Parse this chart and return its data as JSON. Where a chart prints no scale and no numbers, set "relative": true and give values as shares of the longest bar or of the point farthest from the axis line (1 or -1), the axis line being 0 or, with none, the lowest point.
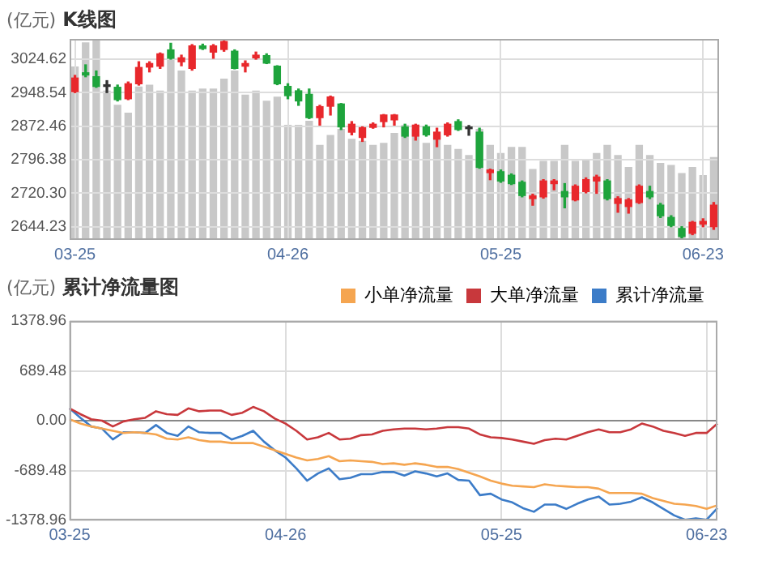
{
  "chart_data": [
    {
      "type": "candlestick",
      "title": "K线图",
      "ylabel": "(亿元)",
      "categories": [
        "03-25",
        null,
        null,
        null,
        null,
        null,
        null,
        null,
        null,
        null,
        null,
        null,
        null,
        null,
        null,
        null,
        null,
        null,
        null,
        null,
        "04-26",
        null,
        null,
        null,
        null,
        null,
        null,
        null,
        null,
        null,
        null,
        null,
        null,
        null,
        null,
        null,
        null,
        null,
        null,
        null,
        "05-25",
        null,
        null,
        null,
        null,
        null,
        null,
        null,
        null,
        null,
        null,
        null,
        null,
        null,
        null,
        null,
        null,
        null,
        null,
        "06-23",
        null
      ],
      "ohlc": [
        [
          2951,
          2988,
          2949,
          2982
        ],
        [
          2994,
          3012,
          2985,
          2989
        ],
        [
          2985,
          2998,
          2961,
          2963
        ],
        [
          2963,
          2976,
          2949,
          2963
        ],
        [
          2961,
          2966,
          2930,
          2933
        ],
        [
          2935,
          2973,
          2933,
          2969
        ],
        [
          2969,
          3019,
          2966,
          3006
        ],
        [
          3007,
          3019,
          2996,
          3015
        ],
        [
          3009,
          3039,
          3004,
          3037
        ],
        [
          3046,
          3061,
          3025,
          3027
        ],
        [
          3019,
          3034,
          3010,
          3028
        ],
        [
          3004,
          3058,
          3000,
          3055
        ],
        [
          3055,
          3059,
          3047,
          3049
        ],
        [
          3041,
          3058,
          3027,
          3055
        ],
        [
          3047,
          3069,
          3043,
          3065
        ],
        [
          3043,
          3046,
          3003,
          3004
        ],
        [
          3009,
          3021,
          2996,
          3015
        ],
        [
          3028,
          3041,
          3025,
          3034
        ],
        [
          3033,
          3037,
          3015,
          3016
        ],
        [
          3009,
          3010,
          2967,
          2969
        ],
        [
          2963,
          2969,
          2935,
          2942
        ],
        [
          2953,
          2957,
          2920,
          2930
        ],
        [
          2945,
          2957,
          2890,
          2892
        ],
        [
          2892,
          2920,
          2875,
          2917
        ],
        [
          2918,
          2941,
          2898,
          2939
        ],
        [
          2923,
          2924,
          2865,
          2871
        ],
        [
          2859,
          2883,
          2853,
          2877
        ],
        [
          2847,
          2871,
          2838,
          2869
        ],
        [
          2870,
          2880,
          2868,
          2877
        ],
        [
          2883,
          2899,
          2871,
          2898
        ],
        [
          2887,
          2899,
          2875,
          2898
        ],
        [
          2871,
          2877,
          2847,
          2850
        ],
        [
          2850,
          2877,
          2841,
          2875
        ],
        [
          2871,
          2875,
          2850,
          2853
        ],
        [
          2843,
          2868,
          2826,
          2859
        ],
        [
          2853,
          2880,
          2850,
          2877
        ],
        [
          2883,
          2887,
          2863,
          2865
        ],
        [
          2867,
          2874,
          2852,
          2867
        ],
        [
          2859,
          2868,
          2777,
          2779
        ],
        [
          2767,
          2775,
          2751,
          2773
        ],
        [
          2769,
          2773,
          2745,
          2748
        ],
        [
          2761,
          2764,
          2740,
          2742
        ],
        [
          2745,
          2748,
          2712,
          2715
        ],
        [
          2708,
          2718,
          2693,
          2714
        ],
        [
          2712,
          2751,
          2709,
          2748
        ],
        [
          2742,
          2751,
          2728,
          2748
        ],
        [
          2724,
          2742,
          2687,
          2712
        ],
        [
          2705,
          2739,
          2703,
          2736
        ],
        [
          2724,
          2755,
          2721,
          2751
        ],
        [
          2748,
          2761,
          2720,
          2757
        ],
        [
          2748,
          2751,
          2705,
          2708
        ],
        [
          2697,
          2712,
          2677,
          2708
        ],
        [
          2690,
          2708,
          2675,
          2705
        ],
        [
          2699,
          2739,
          2697,
          2736
        ],
        [
          2724,
          2736,
          2708,
          2712
        ],
        [
          2693,
          2697,
          2665,
          2669
        ],
        [
          2665,
          2669,
          2644,
          2647
        ],
        [
          2640,
          2644,
          2616,
          2622
        ],
        [
          2629,
          2656,
          2626,
          2654
        ],
        [
          2650,
          2662,
          2644,
          2656
        ],
        [
          2644,
          2699,
          2638,
          2693
        ]
      ],
      "colors": [
        "#e8282c",
        "#1ea43c",
        "#1ea43c",
        "#333333",
        "#1ea43c",
        "#e8282c",
        "#e8282c",
        "#e8282c",
        "#e8282c",
        "#1ea43c",
        "#e8282c",
        "#e8282c",
        "#1ea43c",
        "#e8282c",
        "#e8282c",
        "#1ea43c",
        "#e8282c",
        "#e8282c",
        "#1ea43c",
        "#1ea43c",
        "#1ea43c",
        "#1ea43c",
        "#1ea43c",
        "#e8282c",
        "#e8282c",
        "#1ea43c",
        "#e8282c",
        "#e8282c",
        "#e8282c",
        "#e8282c",
        "#e8282c",
        "#1ea43c",
        "#e8282c",
        "#1ea43c",
        "#e8282c",
        "#e8282c",
        "#1ea43c",
        "#333333",
        "#1ea43c",
        "#e8282c",
        "#1ea43c",
        "#1ea43c",
        "#1ea43c",
        "#e8282c",
        "#e8282c",
        "#e8282c",
        "#1ea43c",
        "#e8282c",
        "#e8282c",
        "#e8282c",
        "#1ea43c",
        "#e8282c",
        "#e8282c",
        "#e8282c",
        "#1ea43c",
        "#1ea43c",
        "#1ea43c",
        "#1ea43c",
        "#e8282c",
        "#e8282c",
        "#e8282c"
      ],
      "ylim": [
        2614,
        3071
      ],
      "yticks": [
        2644.23,
        {
          "value": 2720.3,
          "label": "2720.30"
        },
        2796.38,
        2872.46,
        2948.54,
        3024.62
      ],
      "grid": true
    },
    {
      "type": "bar",
      "relative": true,
      "categories": [
        null,
        null,
        null,
        null,
        null,
        null,
        null,
        null,
        null,
        null,
        null,
        null,
        null,
        null,
        null,
        null,
        null,
        null,
        null,
        null,
        null,
        null,
        null,
        null,
        null,
        null,
        null,
        null,
        null,
        null,
        null,
        null,
        null,
        null,
        null,
        null,
        null,
        null,
        null,
        null,
        null,
        null,
        null,
        null,
        null,
        null,
        null,
        null,
        null,
        null,
        null,
        null,
        null,
        null,
        null,
        null,
        null,
        null,
        null,
        null,
        null
      ],
      "color": "#c8c8c8",
      "values": [
        0.86,
        0.98,
        1,
        0.74,
        0.67,
        0.63,
        0.76,
        0.77,
        0.74,
        0.9,
        0.84,
        0.74,
        0.75,
        0.75,
        0.8,
        0.84,
        0.72,
        0.74,
        0.69,
        0.71,
        0.57,
        0.57,
        0.59,
        0.47,
        0.52,
        0.55,
        0.5,
        0.49,
        0.47,
        0.48,
        0.53,
        0.57,
        0.55,
        0.48,
        0.52,
        0.47,
        0.45,
        0.42,
        0.55,
        0.47,
        0.43,
        0.46,
        0.46,
        0.35,
        0.39,
        0.39,
        0.47,
        0.39,
        0.4,
        0.43,
        0.47,
        0.42,
        0.36,
        0.47,
        0.42,
        0.38,
        0.37,
        0.33,
        0.36,
        0.32,
        0.41
      ]
    },
    {
      "type": "line",
      "title": "累计净流量图",
      "ylabel": "(亿元)",
      "categories": [
        "03-25",
        null,
        null,
        null,
        null,
        null,
        null,
        null,
        null,
        null,
        null,
        null,
        null,
        null,
        null,
        null,
        null,
        null,
        null,
        null,
        "04-26",
        null,
        null,
        null,
        null,
        null,
        null,
        null,
        null,
        null,
        null,
        null,
        null,
        null,
        null,
        null,
        null,
        null,
        null,
        null,
        "05-25",
        null,
        null,
        null,
        null,
        null,
        null,
        null,
        null,
        null,
        null,
        null,
        null,
        null,
        null,
        null,
        null,
        null,
        null,
        "06-23",
        null
      ],
      "series": [
        {
          "name": "小单净流量",
          "color": "#f5a550",
          "values": [
            20,
            -40,
            -80,
            -110,
            -140,
            -170,
            -160,
            -170,
            -190,
            -250,
            -260,
            -230,
            -270,
            -290,
            -290,
            -310,
            -310,
            -310,
            -360,
            -410,
            -460,
            -510,
            -550,
            -530,
            -490,
            -560,
            -550,
            -560,
            -570,
            -600,
            -590,
            -610,
            -590,
            -610,
            -640,
            -640,
            -670,
            -720,
            -770,
            -830,
            -870,
            -900,
            -910,
            -920,
            -880,
            -900,
            -910,
            -920,
            -920,
            -940,
            -1000,
            -1000,
            -1000,
            -1010,
            -1070,
            -1110,
            -1150,
            -1160,
            -1180,
            -1220,
            -1170
          ]
        },
        {
          "name": "大单净流量",
          "color": "#c8383c",
          "values": [
            170,
            90,
            20,
            0,
            -80,
            -10,
            20,
            40,
            130,
            90,
            80,
            170,
            130,
            140,
            140,
            80,
            110,
            190,
            130,
            30,
            -40,
            -140,
            -260,
            -230,
            -170,
            -260,
            -250,
            -200,
            -190,
            -140,
            -120,
            -110,
            -110,
            -120,
            -110,
            -90,
            -90,
            -110,
            -190,
            -230,
            -240,
            -260,
            -290,
            -320,
            -270,
            -250,
            -260,
            -210,
            -160,
            -120,
            -160,
            -160,
            -120,
            -40,
            -80,
            -140,
            -170,
            -210,
            -170,
            -170,
            -40
          ]
        },
        {
          "name": "累计净流量",
          "color": "#3c7cc8",
          "values": [
            170,
            40,
            -80,
            -110,
            -260,
            -160,
            -160,
            -170,
            -60,
            -170,
            -210,
            -80,
            -160,
            -170,
            -170,
            -260,
            -210,
            -140,
            -290,
            -410,
            -510,
            -660,
            -830,
            -730,
            -660,
            -810,
            -790,
            -740,
            -740,
            -710,
            -710,
            -760,
            -700,
            -730,
            -770,
            -730,
            -820,
            -830,
            -1030,
            -1010,
            -1090,
            -1130,
            -1210,
            -1260,
            -1160,
            -1160,
            -1220,
            -1150,
            -1090,
            -1050,
            -1160,
            -1150,
            -1120,
            -1060,
            -1130,
            -1220,
            -1310,
            -1370,
            -1350,
            -1370,
            -1210
          ]
        }
      ],
      "ylim": [
        -1378.96,
        1378.96
      ],
      "yticks": [
        1378.96,
        689.48,
        {
          "value": 0,
          "label": "0.00"
        },
        -689.48,
        -1378.96
      ],
      "grid": true,
      "legend": "top right",
      "marker": "none",
      "line_style": "solid"
    }
  ]
}
